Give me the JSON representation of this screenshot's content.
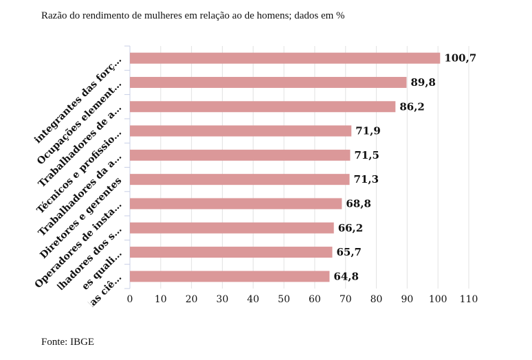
{
  "title": "Razão do rendimento de mulheres em relação ao de homens; dados em %",
  "source": "Fonte: IBGE",
  "colors": {
    "bar": "#db9899",
    "grid": "#e2e2e2",
    "axis": "#c8cfe6"
  },
  "chart_data": {
    "type": "bar",
    "orientation": "horizontal",
    "title": "Razão do rendimento de mulheres em relação ao de homens; dados em %",
    "categories": [
      "Membros integrantes das forç…",
      "Ocupações element…",
      "Trabalhadores de a…",
      "Técnicos e profissio…",
      "Trabalhadores da a…",
      "Diretores e gerentes",
      "Operadores de insta…",
      "Trabalhadores dos s…",
      "Trabalhadores quali…",
      "Profissionais das ciê…"
    ],
    "values": [
      100.7,
      89.8,
      86.2,
      71.9,
      71.5,
      71.3,
      68.8,
      66.2,
      65.7,
      64.8
    ],
    "value_labels": [
      "100,7",
      "89,8",
      "86,2",
      "71,9",
      "71,5",
      "71,3",
      "68,8",
      "66,2",
      "65,7",
      "64,8"
    ],
    "xticks": [
      0,
      10,
      20,
      30,
      40,
      50,
      60,
      70,
      80,
      90,
      100,
      110
    ],
    "xlim": [
      0,
      110
    ],
    "grid": true,
    "xlabel": "",
    "ylabel": ""
  }
}
